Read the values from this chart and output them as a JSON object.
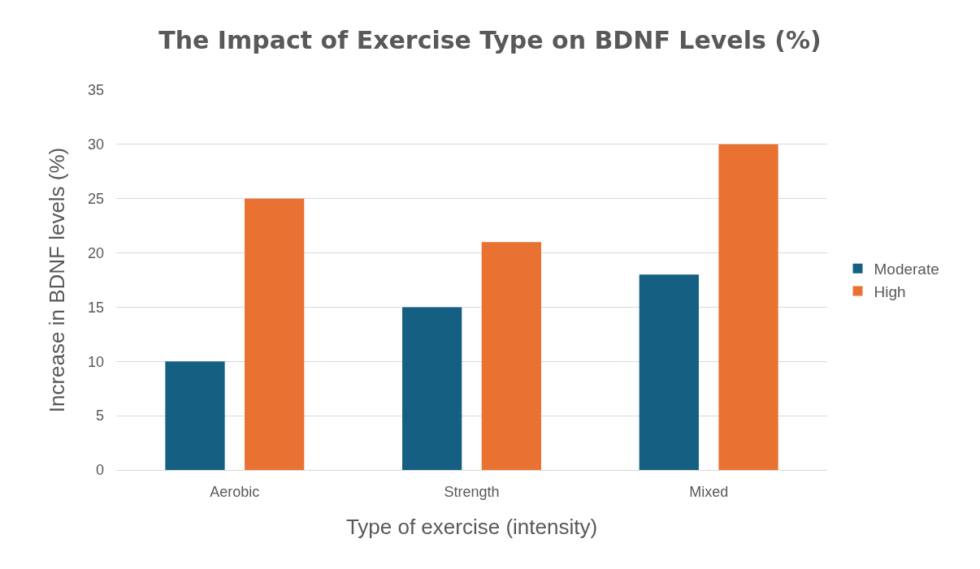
{
  "chart_data": {
    "type": "bar",
    "title": "The Impact of Exercise Type on BDNF Levels (%)",
    "xlabel": "Type of exercise (intensity)",
    "ylabel": "Increase in BDNF levels (%)",
    "categories": [
      "Aerobic",
      "Strength",
      "Mixed"
    ],
    "series": [
      {
        "name": "Moderate",
        "color": "#156082",
        "values": [
          10,
          15,
          18
        ]
      },
      {
        "name": "High",
        "color": "#e97132",
        "values": [
          25,
          21,
          30
        ]
      }
    ],
    "ylim": [
      0,
      35
    ],
    "yticks": [
      0,
      5,
      10,
      15,
      20,
      25,
      30,
      35
    ],
    "grid": "y",
    "legend": "right"
  }
}
